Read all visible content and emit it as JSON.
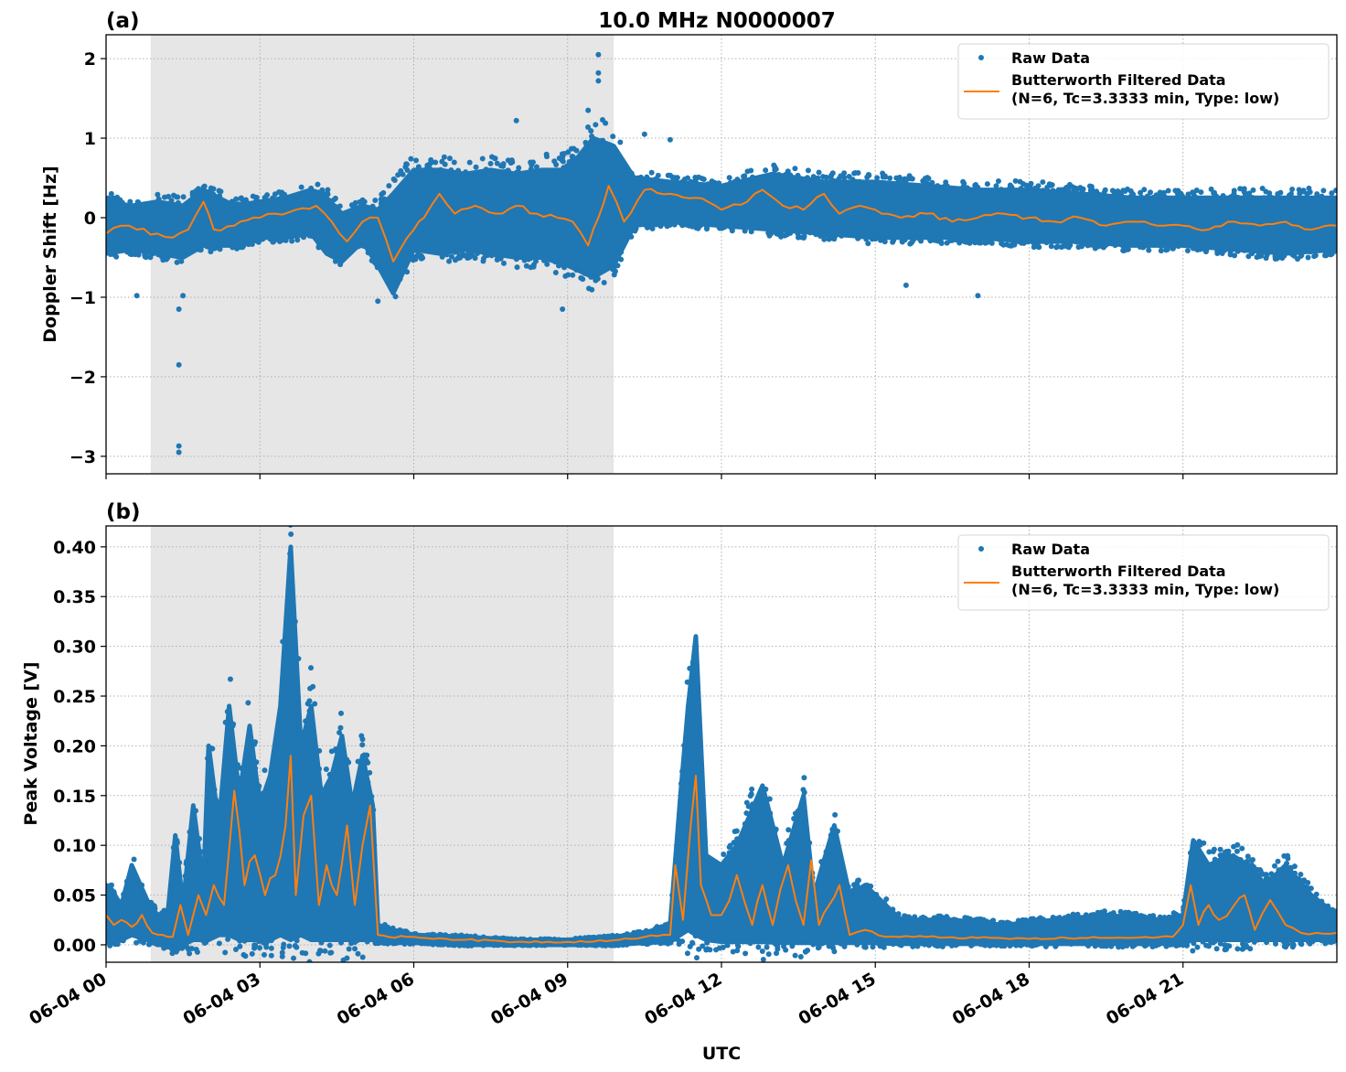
{
  "colors": {
    "raw": "#1f77b4",
    "filtered": "#ff7f0e",
    "shade": "#e6e6e6",
    "grid": "#b0b0b0"
  },
  "chart_data": [
    {
      "type": "scatter",
      "panel_label": "(a)",
      "title": "10.0 MHz N0000007",
      "xlabel": "",
      "ylabel": "Doppler Shift [Hz]",
      "xlim_hours": [
        0,
        24
      ],
      "ylim": [
        -3.22,
        2.3
      ],
      "yticks": [
        2,
        1,
        0,
        -1,
        -2,
        -3
      ],
      "ytick_labels": [
        "2",
        "1",
        "0",
        "−1",
        "−2",
        "−3"
      ],
      "grid": true,
      "shaded_span_hours": [
        0.87,
        9.9
      ],
      "legend": {
        "placement": "top-right",
        "entries": [
          "Raw Data",
          "Butterworth Filtered Data",
          "(N=6, Tc=3.3333 min, Type: low)"
        ]
      },
      "series": [
        {
          "name": "Raw Data",
          "kind": "scatter-envelope",
          "x_hours": [
            0,
            0.5,
            1,
            1.5,
            1.9,
            2.5,
            3,
            3.5,
            4,
            4.3,
            4.6,
            5,
            5.3,
            5.6,
            6,
            6.5,
            7,
            7.5,
            8,
            8.5,
            9,
            9.5,
            9.9,
            10.3,
            11,
            12,
            13,
            14,
            15,
            16,
            17,
            18,
            19,
            20,
            21,
            22,
            23,
            24
          ],
          "upper": [
            0.2,
            0.15,
            0.2,
            0.15,
            0.35,
            0.15,
            0.2,
            0.25,
            0.35,
            0.25,
            0.05,
            0.15,
            0.1,
            0.3,
            0.6,
            0.6,
            0.55,
            0.6,
            0.55,
            0.6,
            0.6,
            1.0,
            0.9,
            0.5,
            0.45,
            0.4,
            0.55,
            0.45,
            0.45,
            0.4,
            0.35,
            0.35,
            0.3,
            0.25,
            0.25,
            0.25,
            0.25,
            0.25
          ],
          "lower": [
            -0.45,
            -0.4,
            -0.45,
            -0.5,
            -0.35,
            -0.35,
            -0.25,
            -0.25,
            -0.2,
            -0.45,
            -0.55,
            -0.3,
            -0.6,
            -0.95,
            -0.4,
            -0.45,
            -0.4,
            -0.45,
            -0.5,
            -0.5,
            -0.6,
            -0.75,
            -0.6,
            -0.1,
            -0.05,
            -0.1,
            -0.15,
            -0.2,
            -0.25,
            -0.25,
            -0.25,
            -0.3,
            -0.3,
            -0.35,
            -0.35,
            -0.4,
            -0.45,
            -0.4
          ]
        },
        {
          "name": "Raw Data outliers",
          "kind": "points",
          "x_hours": [
            1.42,
            1.42,
            1.42,
            1.42,
            1.5,
            0.6,
            9.6,
            9.6,
            9.6,
            9.4,
            8.0,
            5.3,
            10.5,
            15.6,
            17.0,
            8.9,
            11.0
          ],
          "y": [
            -2.95,
            -2.87,
            -1.85,
            -1.15,
            -0.98,
            -0.98,
            2.05,
            1.82,
            1.72,
            1.35,
            1.22,
            -1.05,
            1.05,
            -0.85,
            -0.98,
            -1.15,
            0.98
          ]
        },
        {
          "name": "Butterworth Filtered Data",
          "kind": "line",
          "x_hours": [
            0,
            0.3,
            0.6,
            1,
            1.3,
            1.6,
            1.9,
            2.1,
            2.5,
            3,
            3.3,
            3.7,
            4.1,
            4.4,
            4.7,
            5.0,
            5.3,
            5.6,
            6.0,
            6.2,
            6.5,
            6.8,
            7.2,
            7.6,
            8.0,
            8.4,
            8.8,
            9.1,
            9.4,
            9.6,
            9.8,
            10.1,
            10.5,
            11.0,
            11.5,
            12.0,
            12.5,
            12.8,
            13.2,
            13.6,
            14.0,
            14.3,
            14.7,
            15.0,
            15.5,
            16.0,
            16.5,
            17.0,
            17.5,
            18.0,
            18.5,
            19.0,
            19.5,
            20.0,
            20.5,
            21.0,
            21.5,
            22.0,
            22.5,
            23.0,
            23.5,
            24.0
          ],
          "y": [
            -0.2,
            -0.1,
            -0.15,
            -0.2,
            -0.25,
            -0.15,
            0.2,
            -0.15,
            -0.1,
            0.0,
            0.05,
            0.1,
            0.15,
            -0.05,
            -0.3,
            -0.05,
            0.0,
            -0.55,
            -0.15,
            0.0,
            0.3,
            0.05,
            0.15,
            0.05,
            0.15,
            0.05,
            0.0,
            -0.05,
            -0.35,
            0.0,
            0.4,
            -0.05,
            0.35,
            0.3,
            0.25,
            0.1,
            0.2,
            0.35,
            0.15,
            0.1,
            0.3,
            0.05,
            0.15,
            0.1,
            0.0,
            0.05,
            -0.05,
            0.0,
            0.05,
            0.0,
            -0.05,
            0.0,
            -0.1,
            -0.05,
            -0.1,
            -0.1,
            -0.15,
            -0.05,
            -0.1,
            -0.05,
            -0.15,
            -0.1
          ]
        }
      ]
    },
    {
      "type": "scatter",
      "panel_label": "(b)",
      "title": "",
      "xlabel": "UTC",
      "ylabel": "Peak Voltage [V]",
      "xlim_hours": [
        0,
        24
      ],
      "ylim": [
        -0.0175,
        0.421
      ],
      "yticks": [
        0.4,
        0.35,
        0.3,
        0.25,
        0.2,
        0.15,
        0.1,
        0.05,
        0.0
      ],
      "ytick_labels": [
        "0.40",
        "0.35",
        "0.30",
        "0.25",
        "0.20",
        "0.15",
        "0.10",
        "0.05",
        "0.00"
      ],
      "xticks_hours": [
        0,
        3,
        6,
        9,
        12,
        15,
        18,
        21
      ],
      "xtick_labels": [
        "06-04 00",
        "06-04 03",
        "06-04 06",
        "06-04 09",
        "06-04 12",
        "06-04 15",
        "06-04 18",
        "06-04 21"
      ],
      "grid": true,
      "shaded_span_hours": [
        0.87,
        9.9
      ],
      "legend": {
        "placement": "top-right",
        "entries": [
          "Raw Data",
          "Butterworth Filtered Data",
          "(N=6, Tc=3.3333 min, Type: low)"
        ]
      },
      "series": [
        {
          "name": "Raw Data",
          "kind": "scatter-envelope",
          "x_hours": [
            0,
            0.1,
            0.3,
            0.5,
            0.8,
            1.0,
            1.2,
            1.35,
            1.5,
            1.7,
            1.9,
            2.0,
            2.2,
            2.4,
            2.6,
            2.8,
            3.0,
            3.2,
            3.4,
            3.6,
            3.8,
            4.0,
            4.2,
            4.4,
            4.6,
            4.8,
            5.0,
            5.2,
            5.3,
            5.6,
            6.0,
            7.0,
            8.0,
            9.0,
            9.9,
            10.5,
            11.0,
            11.2,
            11.35,
            11.5,
            11.7,
            12.0,
            12.3,
            12.8,
            13.2,
            13.6,
            13.8,
            14.2,
            14.5,
            14.8,
            15.5,
            16.5,
            17.5,
            18.5,
            19.5,
            20.5,
            21.0,
            21.2,
            21.5,
            21.9,
            22.3,
            22.6,
            23.0,
            23.5,
            24.0
          ],
          "upper": [
            0.06,
            0.055,
            0.04,
            0.08,
            0.045,
            0.03,
            0.03,
            0.11,
            0.04,
            0.14,
            0.06,
            0.2,
            0.12,
            0.24,
            0.15,
            0.22,
            0.14,
            0.17,
            0.24,
            0.4,
            0.2,
            0.24,
            0.15,
            0.17,
            0.21,
            0.14,
            0.19,
            0.14,
            0.02,
            0.015,
            0.01,
            0.008,
            0.005,
            0.005,
            0.008,
            0.012,
            0.02,
            0.15,
            0.24,
            0.31,
            0.09,
            0.08,
            0.1,
            0.16,
            0.08,
            0.15,
            0.05,
            0.12,
            0.05,
            0.06,
            0.025,
            0.025,
            0.02,
            0.025,
            0.03,
            0.025,
            0.03,
            0.105,
            0.08,
            0.09,
            0.08,
            0.06,
            0.08,
            0.05,
            0.03
          ],
          "lower": [
            0.005,
            0.005,
            0.005,
            0.01,
            0.005,
            0.0,
            0.0,
            0.0,
            0.0,
            0.005,
            0.005,
            0.005,
            0.01,
            0.01,
            0.005,
            0.005,
            0.005,
            0.005,
            0.01,
            0.005,
            0.01,
            0.005,
            0.005,
            0.005,
            0.005,
            0.005,
            0.005,
            0.005,
            0.002,
            0.002,
            0.002,
            0.0,
            0.0,
            0.0,
            0.0,
            0.002,
            0.003,
            0.01,
            0.015,
            0.01,
            0.005,
            0.003,
            0.003,
            0.003,
            0.002,
            0.002,
            0.002,
            0.002,
            0.002,
            0.002,
            0.001,
            0.001,
            0.001,
            0.001,
            0.001,
            0.001,
            0.002,
            0.005,
            0.005,
            0.005,
            0.005,
            0.005,
            0.005,
            0.005,
            0.005
          ]
        },
        {
          "name": "Butterworth Filtered Data",
          "kind": "line",
          "x_hours": [
            0,
            0.15,
            0.3,
            0.5,
            0.7,
            0.9,
            1.1,
            1.3,
            1.45,
            1.6,
            1.8,
            1.95,
            2.1,
            2.3,
            2.5,
            2.7,
            2.9,
            3.1,
            3.3,
            3.5,
            3.6,
            3.7,
            3.85,
            4.0,
            4.15,
            4.3,
            4.5,
            4.7,
            4.85,
            5.0,
            5.15,
            5.3,
            5.5,
            6.0,
            7.0,
            8.0,
            9.0,
            10.0,
            10.5,
            11.0,
            11.1,
            11.25,
            11.4,
            11.5,
            11.6,
            11.8,
            12.0,
            12.3,
            12.6,
            12.8,
            13.0,
            13.3,
            13.6,
            13.75,
            13.9,
            14.1,
            14.3,
            14.5,
            14.8,
            15.2,
            16.0,
            17.0,
            18.0,
            19.0,
            20.0,
            20.8,
            21.0,
            21.15,
            21.3,
            21.5,
            21.7,
            22.0,
            22.2,
            22.4,
            22.7,
            23.0,
            23.3,
            23.6,
            24.0
          ],
          "y": [
            0.03,
            0.02,
            0.025,
            0.018,
            0.03,
            0.012,
            0.01,
            0.008,
            0.04,
            0.01,
            0.05,
            0.03,
            0.06,
            0.04,
            0.155,
            0.06,
            0.09,
            0.05,
            0.07,
            0.12,
            0.19,
            0.05,
            0.13,
            0.15,
            0.04,
            0.08,
            0.05,
            0.12,
            0.04,
            0.1,
            0.14,
            0.01,
            0.008,
            0.008,
            0.005,
            0.003,
            0.003,
            0.005,
            0.008,
            0.01,
            0.08,
            0.025,
            0.12,
            0.17,
            0.06,
            0.03,
            0.03,
            0.07,
            0.02,
            0.06,
            0.02,
            0.08,
            0.02,
            0.085,
            0.02,
            0.04,
            0.06,
            0.01,
            0.015,
            0.008,
            0.008,
            0.007,
            0.006,
            0.007,
            0.007,
            0.008,
            0.02,
            0.06,
            0.02,
            0.04,
            0.025,
            0.04,
            0.05,
            0.015,
            0.045,
            0.02,
            0.012,
            0.012,
            0.012
          ]
        }
      ]
    }
  ]
}
